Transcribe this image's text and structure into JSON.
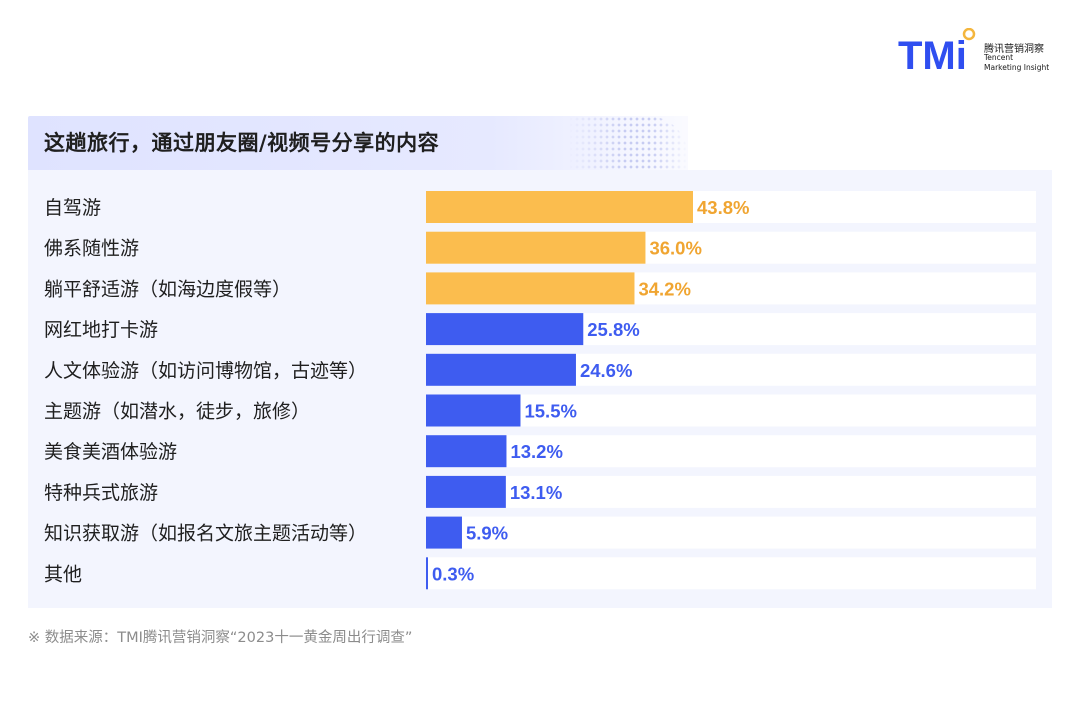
{
  "logo": {
    "mark": "TMi",
    "name_cn": "腾讯营销洞察",
    "name_en_line1": "Tencent",
    "name_en_line2": "Marketing Insight",
    "color": "#2f4ef0",
    "dot_color": "#f4b63d"
  },
  "source": "※ 数据来源：TMI腾讯营销洞察“2023十一黄金周出行调查”",
  "chart_data": {
    "type": "bar",
    "orientation": "horizontal",
    "title": "这趟旅行，通过朋友圈/视频号分享的内容",
    "categories": [
      "自驾游",
      "佛系随性游",
      "躺平舒适游（如海边度假等）",
      "网红地打卡游",
      "人文体验游（如访问博物馆，古迹等）",
      "主题游（如潜水，徒步，旅修）",
      "美食美酒体验游",
      "特种兵式旅游",
      "知识获取游（如报名文旅主题活动等）",
      "其他"
    ],
    "values": [
      43.8,
      36.0,
      34.2,
      25.8,
      24.6,
      15.5,
      13.2,
      13.1,
      5.9,
      0.3
    ],
    "value_labels": [
      "43.8%",
      "36.0%",
      "34.2%",
      "25.8%",
      "24.6%",
      "15.5%",
      "13.2%",
      "13.1%",
      "5.9%",
      "0.3%"
    ],
    "highlight_count": 3,
    "xlim": [
      0,
      100
    ],
    "grid": false,
    "legend": "none",
    "colors": {
      "highlight": "#fbbd4e",
      "highlight_label": "#f0a531",
      "normal": "#3e5cf0",
      "normal_label": "#3e5cf0",
      "track": "#ffffff"
    }
  }
}
